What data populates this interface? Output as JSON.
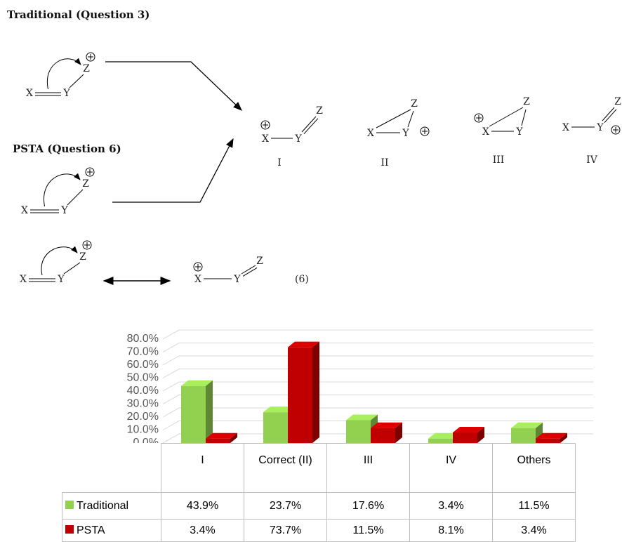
{
  "diagram": {
    "headings": [
      "Traditional (Question 3)",
      "PSTA (Question 6)"
    ],
    "atoms": {
      "X": "X",
      "Y": "Y",
      "Z": "Z"
    },
    "options": [
      "I",
      "II",
      "III",
      "IV"
    ],
    "equation_number": "(6)"
  },
  "chart_data": {
    "type": "bar",
    "categories": [
      "I",
      "Correct (II)",
      "III",
      "IV",
      "Others"
    ],
    "series": [
      {
        "name": "Traditional",
        "color": "#92d050",
        "values": [
          43.9,
          23.7,
          17.6,
          3.4,
          11.5
        ],
        "value_labels": [
          "43.9%",
          "23.7%",
          "17.6%",
          "3.4%",
          "11.5%"
        ]
      },
      {
        "name": "PSTA",
        "color": "#c00000",
        "values": [
          3.4,
          73.7,
          11.5,
          8.1,
          3.4
        ],
        "value_labels": [
          "3.4%",
          "73.7%",
          "11.5%",
          "8.1%",
          "3.4%"
        ]
      }
    ],
    "ylim": [
      0,
      80
    ],
    "yticks": [
      {
        "value": 0,
        "label": "0.0%"
      },
      {
        "value": 10,
        "label": "10.0%"
      },
      {
        "value": 20,
        "label": "20.0%"
      },
      {
        "value": 30,
        "label": "30.0%"
      },
      {
        "value": 40,
        "label": "40.0%"
      },
      {
        "value": 50,
        "label": "50.0%"
      },
      {
        "value": 60,
        "label": "60.0%"
      },
      {
        "value": 70,
        "label": "70.0%"
      },
      {
        "value": 80,
        "label": "80.0%"
      }
    ],
    "grid": true,
    "legend": "table"
  }
}
